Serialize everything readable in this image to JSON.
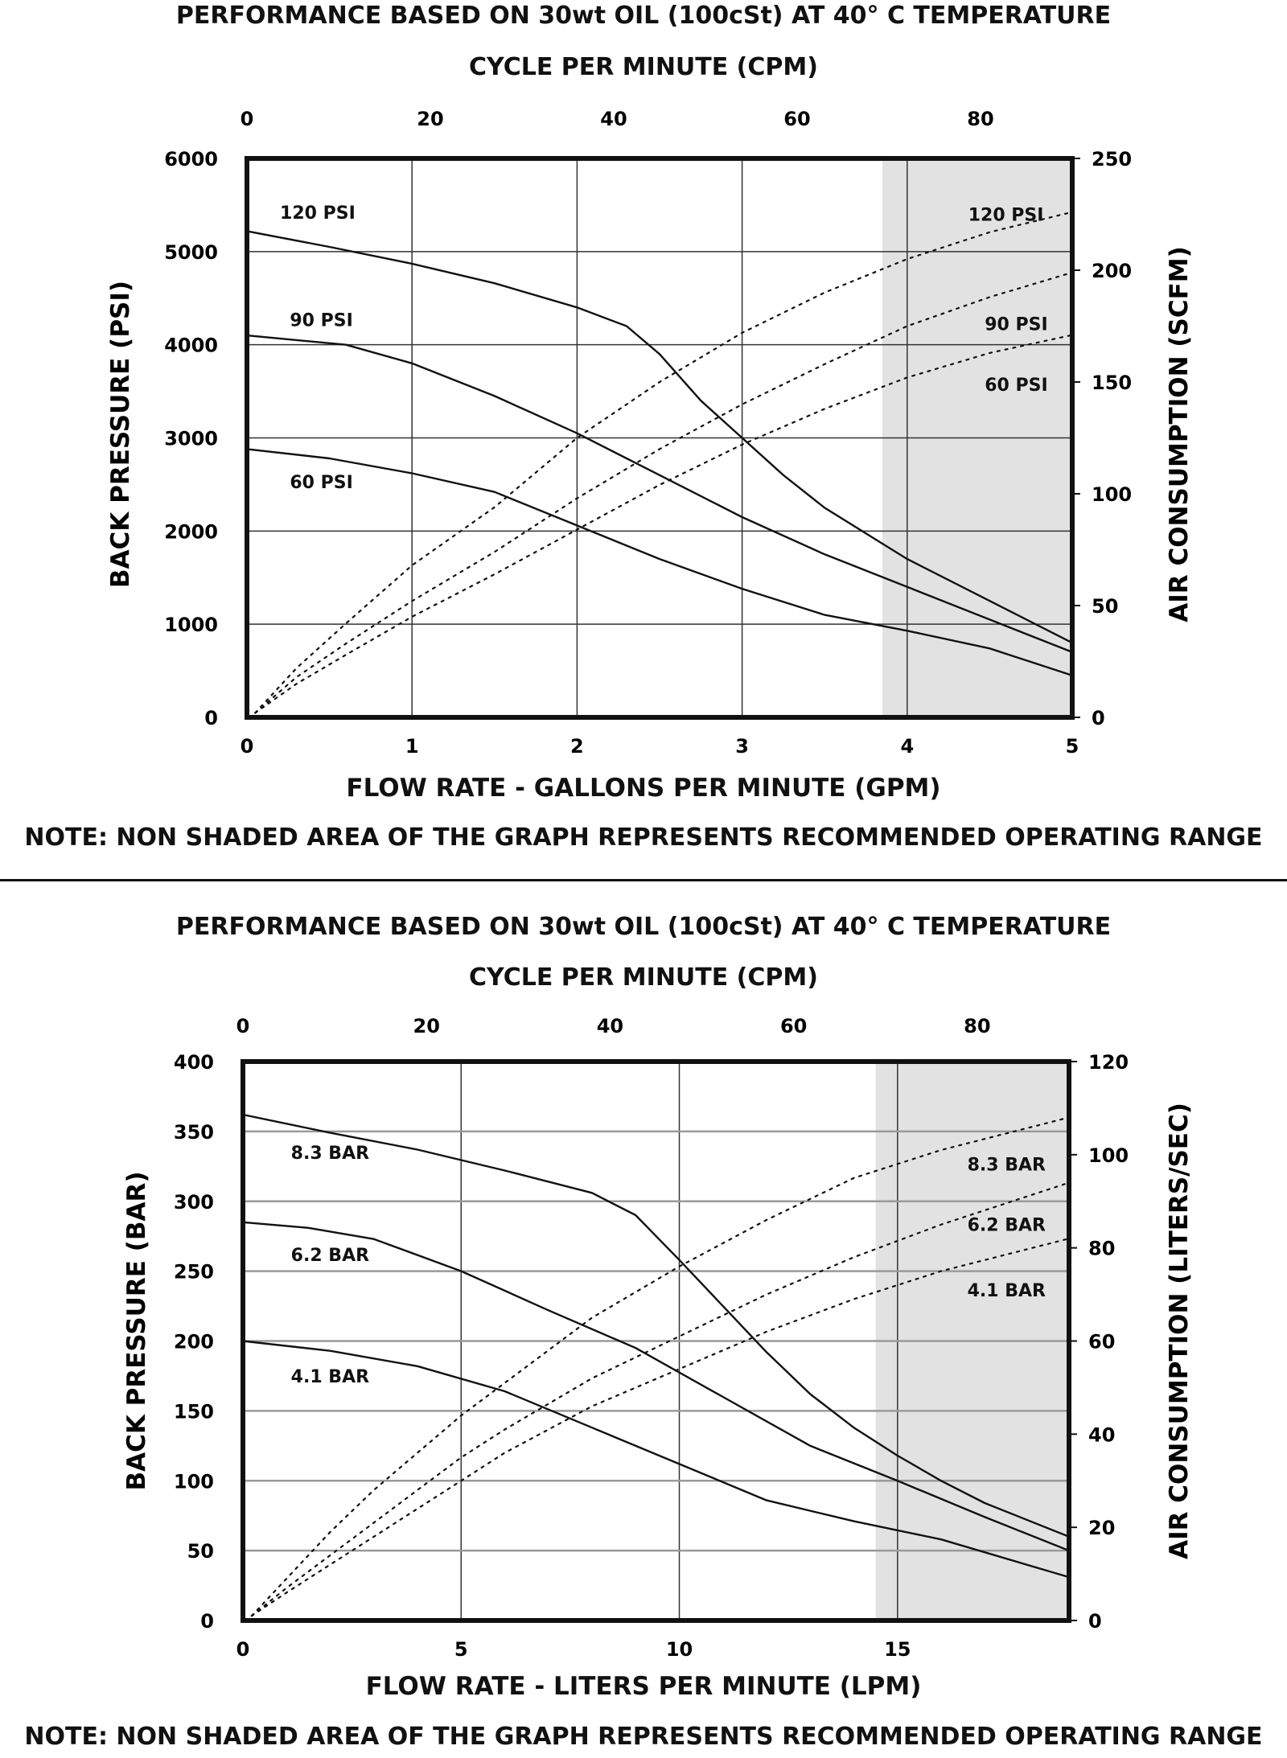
{
  "chart_data": [
    {
      "type": "line",
      "title": "PERFORMANCE BASED ON 30wt OIL (100cSt) AT 40° C TEMPERATURE",
      "top_axis_label": "CYCLE PER MINUTE (CPM)",
      "xlabel": "FLOW RATE - GALLONS PER MINUTE (GPM)",
      "ylabel": "BACK PRESSURE  (PSI)",
      "y2label": "AIR CONSUMPTION  (SCFM)",
      "note": "NOTE: NON SHADED AREA OF THE GRAPH REPRESENTS RECOMMENDED OPERATING RANGE",
      "xlim": [
        0,
        5
      ],
      "ylim": [
        0,
        6000
      ],
      "y2lim": [
        0,
        250
      ],
      "toplim": [
        0,
        90
      ],
      "xticks": [
        0,
        1,
        2,
        3,
        4,
        5
      ],
      "yticks": [
        0,
        1000,
        2000,
        3000,
        4000,
        5000,
        6000
      ],
      "y2ticks": [
        0,
        50,
        100,
        150,
        200,
        250
      ],
      "topticks": [
        0,
        20,
        40,
        60,
        80
      ],
      "xgrid": [
        1,
        2,
        3,
        4
      ],
      "ygrid": [
        1000,
        2000,
        3000,
        4000,
        5000
      ],
      "shaded_from_x": 3.85,
      "series": [
        {
          "name": "120 PSI",
          "axis": "left",
          "style": "solid",
          "x": [
            0,
            0.5,
            1,
            1.5,
            2,
            2.3,
            2.5,
            2.75,
            3,
            3.25,
            3.5,
            4,
            4.5,
            5
          ],
          "y": [
            5220,
            5050,
            4870,
            4660,
            4400,
            4200,
            3900,
            3400,
            3000,
            2600,
            2250,
            1700,
            1250,
            800
          ],
          "label_pos": [
            0.2,
            5420
          ]
        },
        {
          "name": "90 PSI",
          "axis": "left",
          "style": "solid",
          "x": [
            0,
            0.6,
            1,
            1.5,
            2,
            2.5,
            3,
            3.5,
            4,
            4.5,
            5
          ],
          "y": [
            4100,
            4000,
            3800,
            3450,
            3050,
            2600,
            2150,
            1750,
            1400,
            1050,
            700
          ],
          "label_pos": [
            0.26,
            4270
          ]
        },
        {
          "name": "60 PSI",
          "axis": "left",
          "style": "solid",
          "x": [
            0,
            0.5,
            1,
            1.5,
            2,
            2.5,
            3,
            3.5,
            4,
            4.5,
            5
          ],
          "y": [
            2880,
            2780,
            2620,
            2420,
            2060,
            1700,
            1380,
            1100,
            930,
            740,
            450
          ],
          "label_pos": [
            0.26,
            2530
          ]
        },
        {
          "name": "120 PSI",
          "axis": "right",
          "style": "dashed",
          "x": [
            0.05,
            0.3,
            0.6,
            1,
            1.5,
            2,
            2.5,
            3,
            3.5,
            4,
            4.5,
            5
          ],
          "y": [
            2,
            22,
            42,
            68,
            94,
            125,
            150,
            172,
            190,
            205,
            217,
            226
          ],
          "label_pos": [
            4.37,
            225
          ]
        },
        {
          "name": "90 PSI",
          "axis": "right",
          "style": "dashed",
          "x": [
            0.05,
            0.3,
            0.6,
            1,
            1.5,
            2,
            2.5,
            3,
            3.5,
            4,
            4.5,
            5
          ],
          "y": [
            2,
            18,
            33,
            52,
            74,
            98,
            120,
            140,
            158,
            175,
            188,
            199
          ],
          "label_pos": [
            4.47,
            176
          ]
        },
        {
          "name": "60 PSI",
          "axis": "right",
          "style": "dashed",
          "x": [
            0.05,
            0.3,
            0.6,
            1,
            1.5,
            2,
            2.5,
            3,
            3.5,
            4,
            4.5,
            5
          ],
          "y": [
            2,
            15,
            28,
            45,
            64,
            84,
            104,
            122,
            138,
            152,
            163,
            171
          ],
          "label_pos": [
            4.47,
            149
          ]
        }
      ]
    },
    {
      "type": "line",
      "title": "PERFORMANCE BASED ON 30wt OIL (100cSt) AT 40° C TEMPERATURE",
      "top_axis_label": "CYCLE PER MINUTE (CPM)",
      "xlabel": "FLOW RATE - LITERS PER MINUTE (LPM)",
      "ylabel": "BACK PRESSURE  (BAR)",
      "y2label": "AIR CONSUMPTION  (LITERS/SEC)",
      "note": "NOTE: NON SHADED AREA OF THE GRAPH REPRESENTS RECOMMENDED OPERATING RANGE",
      "xlim": [
        0,
        18.93
      ],
      "ylim": [
        0,
        400
      ],
      "y2lim": [
        0,
        120
      ],
      "toplim": [
        0,
        90
      ],
      "xticks": [
        0,
        5,
        10,
        15
      ],
      "yticks": [
        0,
        50,
        100,
        150,
        200,
        250,
        300,
        350,
        400
      ],
      "y2ticks": [
        0,
        20,
        40,
        60,
        80,
        100,
        120
      ],
      "topticks": [
        0,
        20,
        40,
        60,
        80
      ],
      "xgrid": [
        5,
        10,
        15
      ],
      "ygrid": [
        50,
        100,
        150,
        200,
        250,
        300,
        350
      ],
      "shaded_from_x": 14.5,
      "series": [
        {
          "name": "8.3 BAR",
          "axis": "left",
          "style": "solid",
          "x": [
            0,
            2,
            4,
            6,
            8,
            9,
            10,
            11,
            12,
            13,
            14,
            15,
            16,
            17,
            18.93
          ],
          "y": [
            362,
            349,
            337,
            322,
            306,
            290,
            258,
            225,
            192,
            162,
            138,
            118,
            100,
            84,
            60
          ],
          "label_pos": [
            1.1,
            335
          ]
        },
        {
          "name": "6.2 BAR",
          "axis": "left",
          "style": "solid",
          "x": [
            0,
            1.5,
            3,
            5,
            7,
            9,
            11,
            13,
            15,
            17,
            18.93
          ],
          "y": [
            285,
            281,
            273,
            250,
            222,
            195,
            160,
            125,
            100,
            74,
            50
          ],
          "label_pos": [
            1.1,
            262
          ]
        },
        {
          "name": "4.1 BAR",
          "axis": "left",
          "style": "solid",
          "x": [
            0,
            2,
            4,
            6,
            8,
            10,
            12,
            14,
            16,
            18.93
          ],
          "y": [
            200,
            193,
            182,
            164,
            138,
            112,
            86,
            71,
            58,
            31
          ],
          "label_pos": [
            1.1,
            175
          ]
        },
        {
          "name": "8.3 BAR",
          "axis": "right",
          "style": "dashed",
          "x": [
            0.2,
            1,
            2,
            3,
            4,
            5,
            6,
            8,
            10,
            12,
            14,
            16,
            18.93
          ],
          "y": [
            1,
            9,
            19,
            28,
            36,
            44,
            51,
            65,
            76,
            86,
            95,
            101,
            108
          ],
          "label_pos": [
            16.6,
            98
          ]
        },
        {
          "name": "6.2 BAR",
          "axis": "right",
          "style": "dashed",
          "x": [
            0.2,
            1,
            2,
            3,
            4,
            5,
            6,
            8,
            10,
            12,
            14,
            16,
            18.93
          ],
          "y": [
            1,
            7,
            14,
            21,
            28,
            35,
            41,
            52,
            61,
            70,
            78,
            85,
            94
          ],
          "label_pos": [
            16.6,
            85
          ]
        },
        {
          "name": "4.1 BAR",
          "axis": "right",
          "style": "dashed",
          "x": [
            0.2,
            1,
            2,
            3,
            4,
            5,
            6,
            8,
            10,
            12,
            14,
            16,
            18.93
          ],
          "y": [
            1,
            6,
            12,
            18,
            24,
            30,
            36,
            46,
            54,
            62,
            69,
            75,
            82
          ],
          "label_pos": [
            16.6,
            71
          ]
        }
      ]
    }
  ]
}
